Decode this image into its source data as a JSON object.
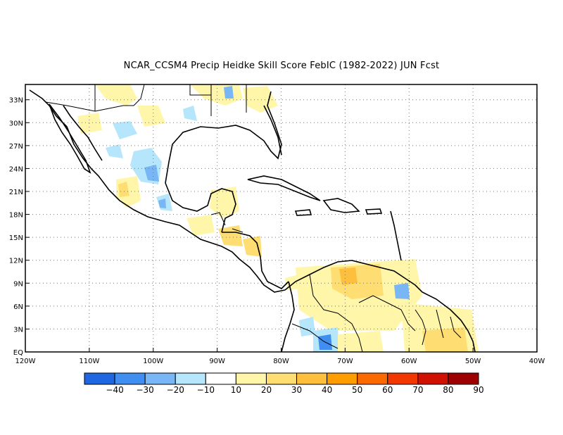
{
  "title": "NCAR_CCSM4 Precip Heidke Skill Score FebIC (1982-2022) JUN Fcst",
  "map": {
    "lat_labels": [
      "EQ",
      "3N",
      "6N",
      "9N",
      "12N",
      "15N",
      "18N",
      "21N",
      "24N",
      "27N",
      "30N",
      "33N"
    ],
    "lat_values": [
      0,
      3,
      6,
      9,
      12,
      15,
      18,
      21,
      24,
      27,
      30,
      33
    ],
    "lon_labels": [
      "120W",
      "110W",
      "100W",
      "90W",
      "80W",
      "70W",
      "60W",
      "50W",
      "40W"
    ],
    "lon_values": [
      -120,
      -110,
      -100,
      -90,
      -80,
      -70,
      -60,
      -50,
      -40
    ],
    "lat_range": [
      0,
      35
    ],
    "lon_range": [
      -120,
      -40
    ],
    "grid": "dotted"
  },
  "colorbar": {
    "labels": [
      "-40",
      "-30",
      "-20",
      "-10",
      "10",
      "20",
      "30",
      "40",
      "50",
      "60",
      "70",
      "80",
      "90"
    ],
    "colors": [
      "#1f66e0",
      "#3f8ef0",
      "#79b6f6",
      "#b5e6fb",
      "#ffffff",
      "#fff6a9",
      "#fedd73",
      "#fdbf3c",
      "#fd9d00",
      "#fb6a00",
      "#f23800",
      "#d01000",
      "#9d0000"
    ]
  }
}
